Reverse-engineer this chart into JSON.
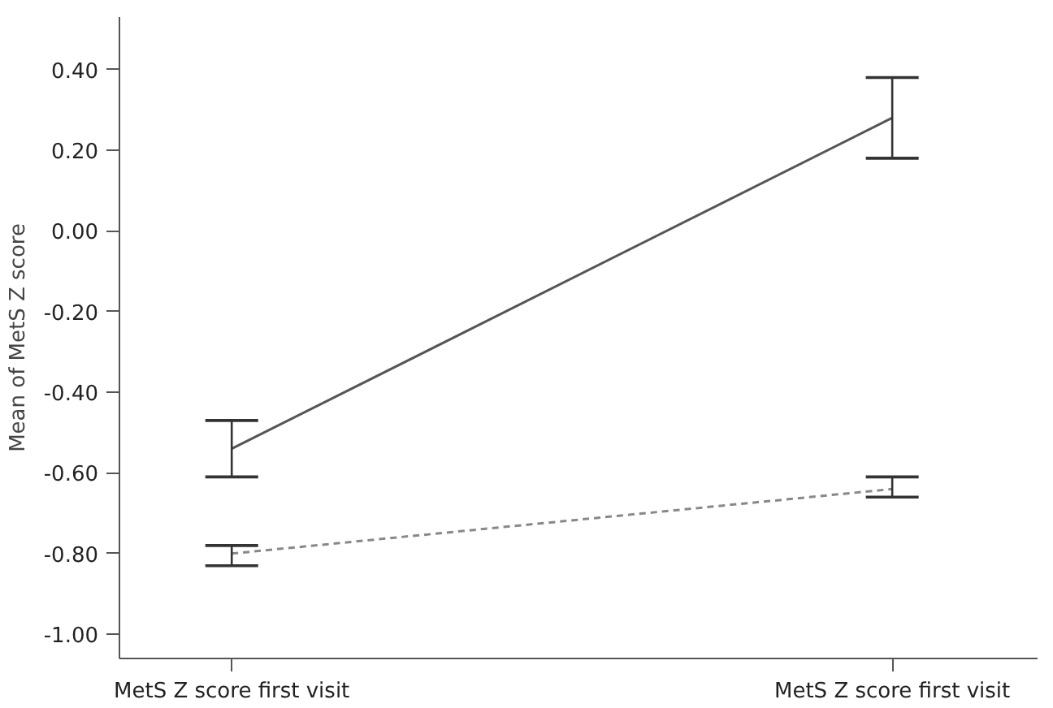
{
  "chart_data": {
    "type": "line",
    "ylabel": "Mean of MetS Z score",
    "categories": [
      "MetS Z score first visit",
      "MetS Z score first visit"
    ],
    "series": [
      {
        "color": "#555555",
        "values": [
          -0.54,
          0.28
        ],
        "errors": [
          [
            -0.61,
            -0.47
          ],
          [
            0.18,
            0.38
          ]
        ],
        "line_style": "solid"
      },
      {
        "color": "#888888",
        "values": [
          -0.8,
          -0.64
        ],
        "errors": [
          [
            -0.83,
            -0.78
          ],
          [
            -0.66,
            -0.61
          ]
        ],
        "line_style": "dashed"
      }
    ],
    "ylim": [
      -1.06,
      0.53
    ],
    "yticks": [
      {
        "value": 0.4,
        "label": "0.40"
      },
      {
        "value": 0.2,
        "label": "0.20"
      },
      {
        "value": 0.0,
        "label": "0.00"
      },
      {
        "value": -0.2,
        "label": "-0.20"
      },
      {
        "value": -0.4,
        "label": "-0.40"
      },
      {
        "value": -0.6,
        "label": "-0.60"
      },
      {
        "value": -0.8,
        "label": "-0.80"
      },
      {
        "value": -1.0,
        "label": "-1.00"
      }
    ],
    "grid": false,
    "marker": "none"
  }
}
